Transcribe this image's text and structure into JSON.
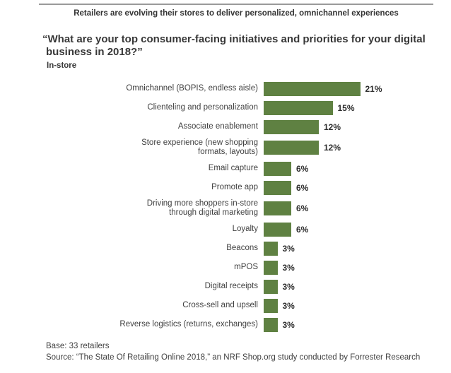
{
  "banner": "Retailers are evolving their stores to deliver personalized, omnichannel experiences",
  "title": "“What are your top consumer-facing initiatives and priorities for your digital\nbusiness in 2018?”",
  "subtitle": "In-store",
  "chart_data": {
    "type": "bar",
    "orientation": "horizontal",
    "title": "“What are your top consumer-facing initiatives and priorities for your digital business in 2018?” — In-store",
    "categories": [
      "Omnichannel (BOPIS, endless aisle)",
      "Clienteling and personalization",
      "Associate enablement",
      "Store experience (new shopping\nformats, layouts)",
      "Email capture",
      "Promote app",
      "Driving more shoppers in-store\nthrough digital marketing",
      "Loyalty",
      "Beacons",
      "mPOS",
      "Digital receipts",
      "Cross-sell and upsell",
      "Reverse logistics (returns, exchanges)"
    ],
    "values": [
      21,
      15,
      12,
      12,
      6,
      6,
      6,
      6,
      3,
      3,
      3,
      3,
      3
    ],
    "value_labels": [
      "21%",
      "15%",
      "12%",
      "12%",
      "6%",
      "6%",
      "6%",
      "6%",
      "3%",
      "3%",
      "3%",
      "3%",
      "3%"
    ],
    "unit": "percent of retailers",
    "xlim": [
      0,
      25
    ],
    "grid": false,
    "legend": null,
    "bar_color": "#5f8142"
  },
  "footer": {
    "base": "Base: 33 retailers",
    "source": "Source: “The State Of Retailing Online 2018,” an NRF Shop.org study conducted by Forrester Research"
  },
  "colors": {
    "bar": "#5f8142",
    "text": "#3c3c3c",
    "rule": "#9a9a9a"
  }
}
